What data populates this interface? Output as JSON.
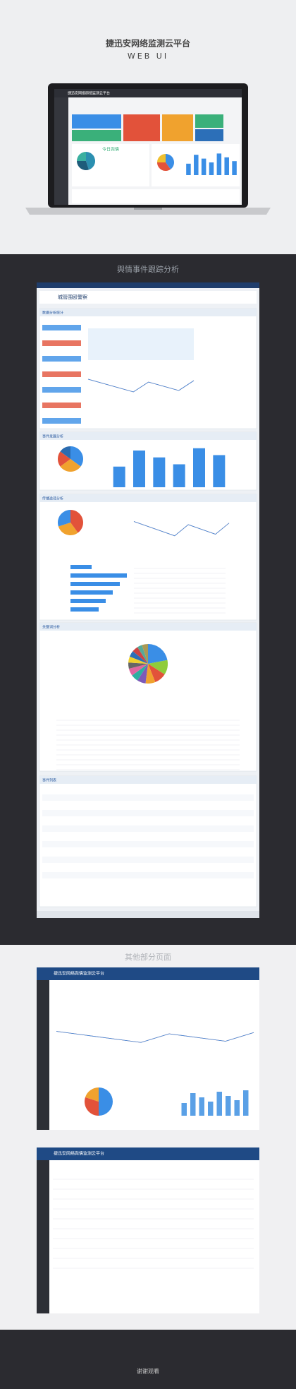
{
  "header": {
    "title": "捷迅安网络监测云平台",
    "subtitle": "WEB UI"
  },
  "laptop": {
    "app_title": "捷迅安网络舆情监测云平台",
    "today": "今日舆情"
  },
  "section1": {
    "title": "舆情事件跟踪分析",
    "panel": {
      "event": "城管围殴警察",
      "blocks": [
        "数据分析统计",
        "事件发展分析",
        "传播途径分析",
        "关键词分析",
        "事件列表"
      ]
    }
  },
  "section2": {
    "title": "其他部分页面",
    "pages": [
      "捷迅安网络舆情监测云平台",
      "捷迅安网络舆情监测云平台"
    ]
  },
  "footer": {
    "text": "谢谢观看"
  }
}
